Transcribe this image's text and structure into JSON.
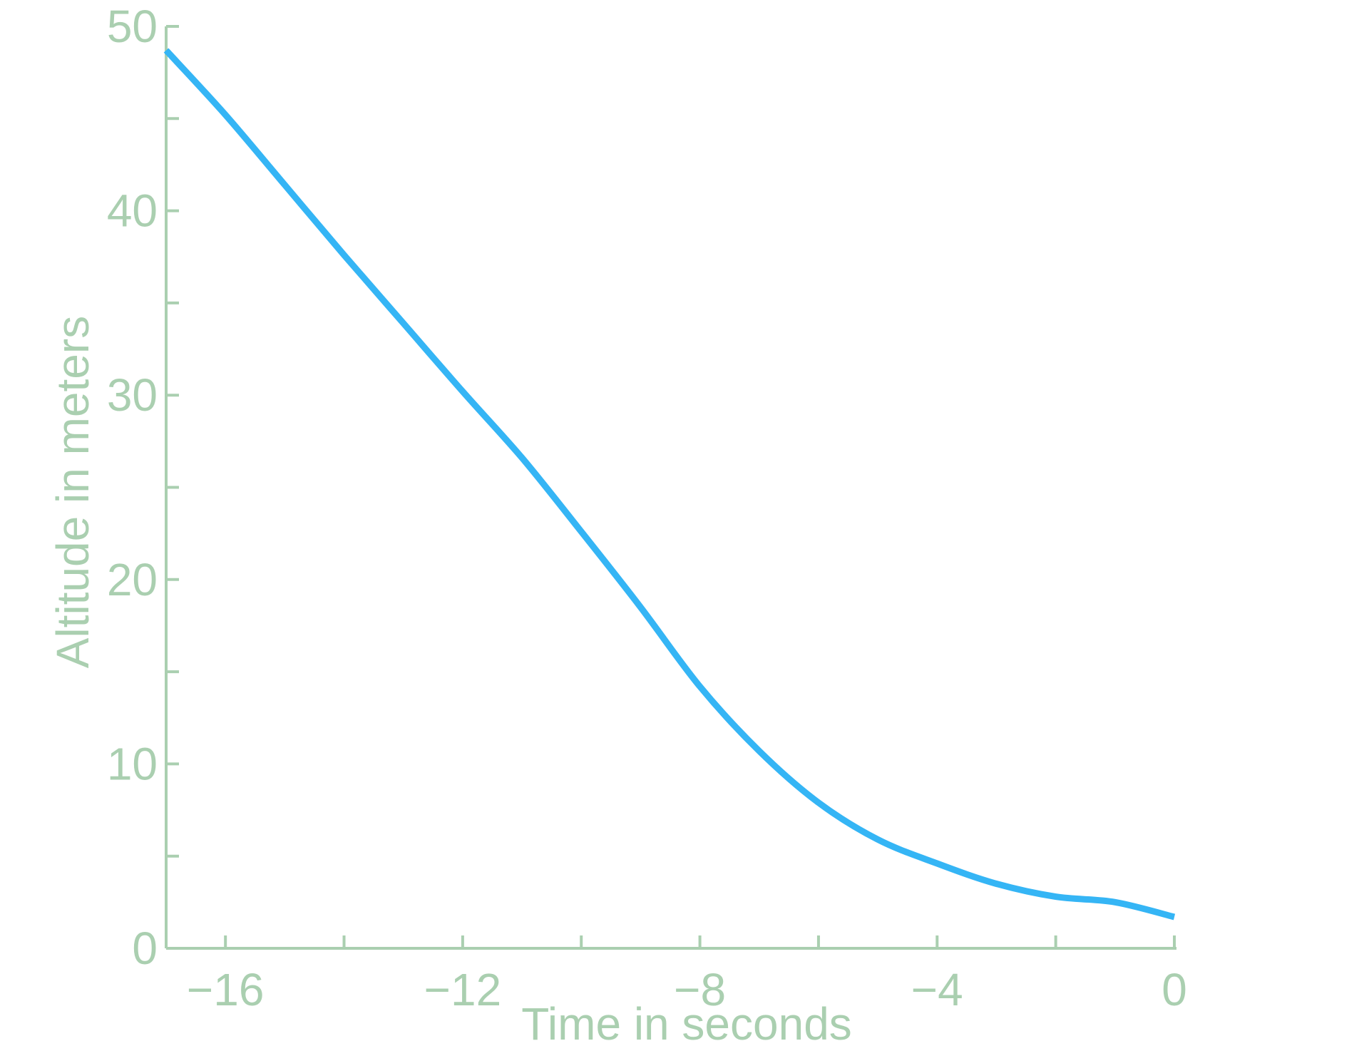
{
  "chart_data": {
    "type": "line",
    "title": "",
    "xlabel": "Time in seconds",
    "ylabel": "Altitude in meters",
    "xlim": [
      -17,
      0
    ],
    "ylim": [
      0,
      50
    ],
    "x_ticks": [
      -16,
      -14,
      -12,
      -10,
      -8,
      -6,
      -4,
      -2,
      0
    ],
    "x_tick_labels": [
      "−16",
      "",
      "−12",
      "",
      "−8",
      "",
      "−4",
      "",
      "0"
    ],
    "y_ticks": [
      0,
      5,
      10,
      15,
      20,
      25,
      30,
      35,
      40,
      45,
      50
    ],
    "y_tick_labels": [
      "0",
      "",
      "10",
      "",
      "20",
      "",
      "30",
      "",
      "40",
      "",
      "50"
    ],
    "grid": false,
    "colors": {
      "axis": "#aacfb0",
      "line": "#35b5f5"
    },
    "series": [
      {
        "x": [
          -17,
          -16,
          -15,
          -14,
          -13,
          -12,
          -11,
          -10,
          -9,
          -8,
          -7,
          -6,
          -5,
          -4,
          -3,
          -2,
          -1,
          0
        ],
        "y": [
          48.7,
          45.2,
          41.4,
          37.6,
          33.9,
          30.2,
          26.6,
          22.6,
          18.5,
          14.2,
          10.7,
          7.9,
          5.9,
          4.6,
          3.5,
          2.8,
          2.5,
          1.7
        ]
      }
    ]
  }
}
